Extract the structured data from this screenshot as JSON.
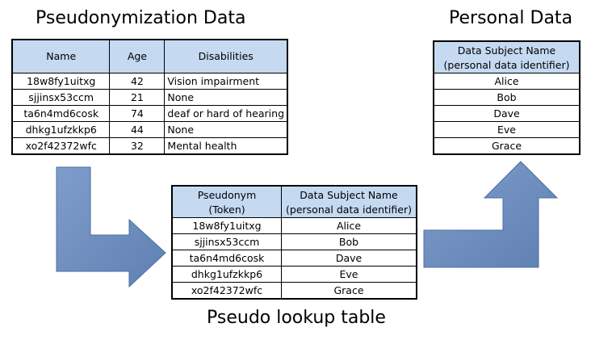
{
  "titles": {
    "pseudonymization": "Pseudonymization Data",
    "personal": "Personal Data",
    "lookup": "Pseudo lookup table"
  },
  "pseudonymization_table": {
    "headers": [
      "Name",
      "Age",
      "Disabilities"
    ],
    "rows": [
      [
        "18w8fy1uitxg",
        "42",
        "Vision impairment"
      ],
      [
        "sjjinsx53ccm",
        "21",
        "None"
      ],
      [
        "ta6n4md6cosk",
        "74",
        "deaf or hard of hearing"
      ],
      [
        "dhkg1ufzkkp6",
        "44",
        "None"
      ],
      [
        "xo2f42372wfc",
        "32",
        "Mental health"
      ]
    ]
  },
  "lookup_table": {
    "headers": [
      "Pseudonym",
      "(Token)",
      "Data Subject Name",
      "(personal data identifier)"
    ],
    "rows": [
      [
        "18w8fy1uitxg",
        "Alice"
      ],
      [
        "sjjinsx53ccm",
        "Bob"
      ],
      [
        "ta6n4md6cosk",
        "Dave"
      ],
      [
        "dhkg1ufzkkp6",
        "Eve"
      ],
      [
        "xo2f42372wfc",
        "Grace"
      ]
    ]
  },
  "personal_table": {
    "headers": [
      "Data Subject Name",
      "(personal data identifier)"
    ],
    "rows": [
      "Alice",
      "Bob",
      "Dave",
      "Eve",
      "Grace"
    ]
  },
  "colors": {
    "header_fill": "#c5d9f1",
    "arrow": "#6d8ebf"
  }
}
